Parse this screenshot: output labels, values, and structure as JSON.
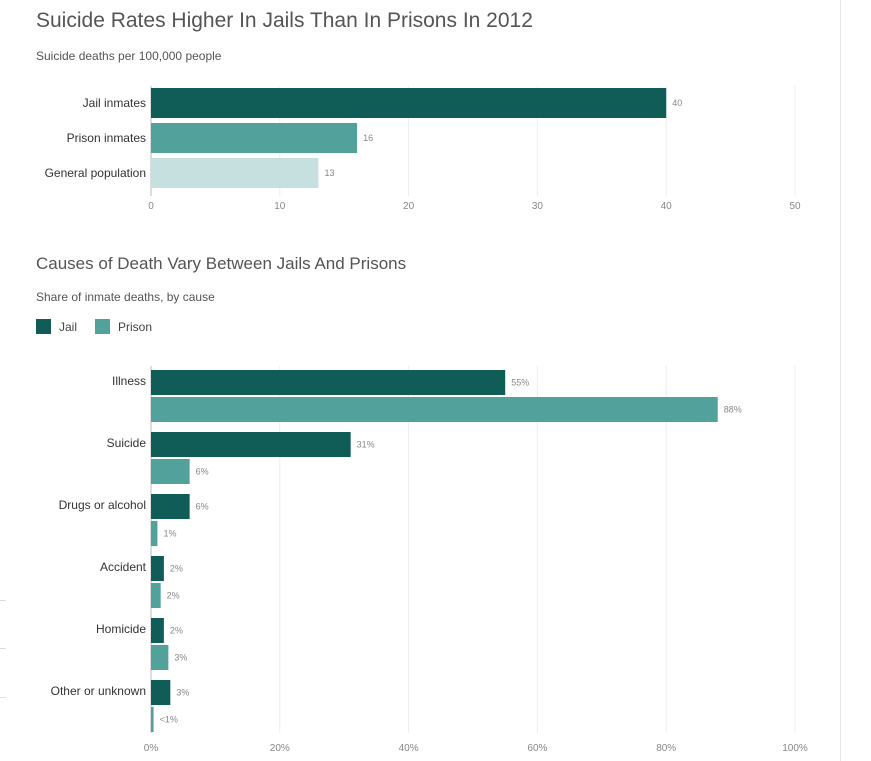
{
  "charts": [
    {
      "title": "Suicide Rates Higher In Jails Than In Prisons In 2012",
      "subtitle": "Suicide deaths per 100,000 people"
    },
    {
      "title": "Causes of Death Vary Between Jails And Prisons",
      "subtitle": "Share of inmate deaths, by cause",
      "legend": [
        {
          "name": "Jail",
          "color": "#105c57"
        },
        {
          "name": "Prison",
          "color": "#52a29b"
        }
      ]
    }
  ],
  "chart_data": [
    {
      "type": "bar",
      "orientation": "horizontal",
      "title": "Suicide Rates Higher In Jails Than In Prisons In 2012",
      "subtitle": "Suicide deaths per 100,000 people",
      "categories": [
        "Jail inmates",
        "Prison inmates",
        "General population"
      ],
      "values": [
        40,
        16,
        13
      ],
      "value_labels": [
        "40",
        "16",
        "13"
      ],
      "colors": [
        "#105c57",
        "#52a29b",
        "#c6e0df"
      ],
      "xlim": [
        0,
        50
      ],
      "ticks": [
        0,
        10,
        20,
        30,
        40,
        50
      ],
      "tick_labels": [
        "0",
        "10",
        "20",
        "30",
        "40",
        "50"
      ],
      "xlabel": "",
      "ylabel": "",
      "grid": true
    },
    {
      "type": "bar",
      "orientation": "horizontal",
      "title": "Causes of Death Vary Between Jails And Prisons",
      "subtitle": "Share of inmate deaths, by cause",
      "categories": [
        "Illness",
        "Suicide",
        "Drugs or alcohol",
        "Accident",
        "Homicide",
        "Other or unknown"
      ],
      "series": [
        {
          "name": "Jail",
          "color": "#105c57",
          "values": [
            55,
            31,
            6,
            2,
            2,
            3
          ],
          "labels": [
            "55%",
            "31%",
            "6%",
            "2%",
            "2%",
            "3%"
          ]
        },
        {
          "name": "Prison",
          "color": "#52a29b",
          "values": [
            88,
            6,
            1,
            1.5,
            2.7,
            0.4
          ],
          "labels": [
            "88%",
            "6%",
            "1%",
            "2%",
            "3%",
            "<1%"
          ]
        }
      ],
      "xlim": [
        0,
        100
      ],
      "ticks": [
        0,
        20,
        40,
        60,
        80,
        100
      ],
      "tick_labels": [
        "0%",
        "20%",
        "40%",
        "60%",
        "80%",
        "100%"
      ],
      "legend": "top-left",
      "xlabel": "",
      "ylabel": "",
      "grid": true
    }
  ]
}
